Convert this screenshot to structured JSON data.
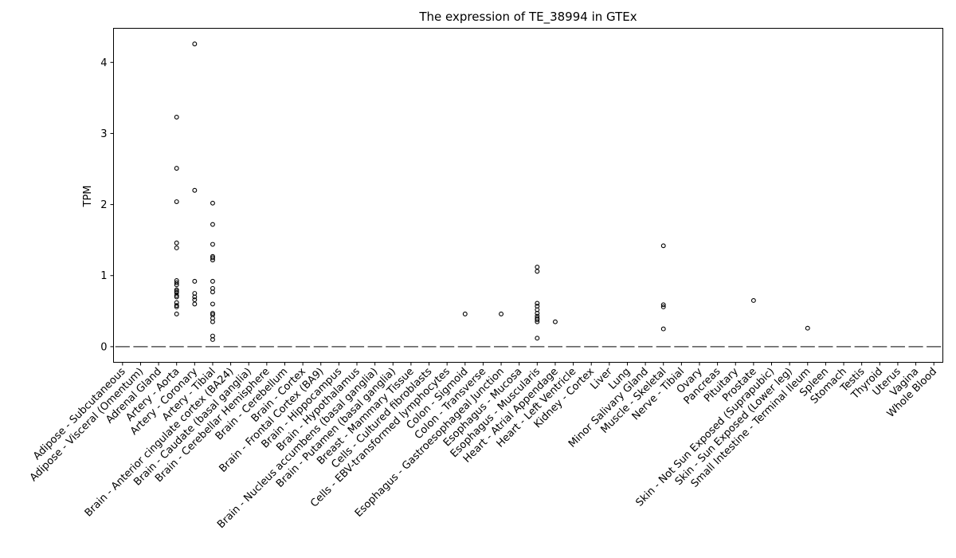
{
  "chart_data": {
    "type": "box",
    "title": "The expression of TE_38994 in GTEx",
    "xlabel": "",
    "ylabel": "TPM",
    "ylim": [
      -0.22,
      4.48
    ],
    "yticks": [
      0,
      1,
      2,
      3,
      4
    ],
    "grid": false,
    "categories": [
      "Adipose - Subcutaneous",
      "Adipose - Visceral (Omentum)",
      "Adrenal Gland",
      "Artery - Aorta",
      "Artery - Coronary",
      "Artery - Tibial",
      "Brain - Anterior cingulate cortex (BA24)",
      "Brain - Caudate (basal ganglia)",
      "Brain - Cerebellar Hemisphere",
      "Brain - Cerebellum",
      "Brain - Cortex",
      "Brain - Frontal Cortex (BA9)",
      "Brain - Hippocampus",
      "Brain - Hypothalamus",
      "Brain - Nucleus accumbens (basal ganglia)",
      "Brain - Putamen (basal ganglia)",
      "Breast - Mammary Tissue",
      "Cells - Cultured fibroblasts",
      "Cells - EBV-transformed lymphocytes",
      "Colon - Sigmoid",
      "Colon - Transverse",
      "Esophagus - Gastroesophageal Junction",
      "Esophagus - Mucosa",
      "Esophagus - Muscularis",
      "Heart - Atrial Appendage",
      "Heart - Left Ventricle",
      "Kidney - Cortex",
      "Liver",
      "Lung",
      "Minor Salivary Gland",
      "Muscle - Skeletal",
      "Nerve - Tibial",
      "Ovary",
      "Pancreas",
      "Pituitary",
      "Prostate",
      "Skin - Not Sun Exposed (Suprapubic)",
      "Skin - Sun Exposed (Lower leg)",
      "Small Intestine - Terminal Ileum",
      "Spleen",
      "Stomach",
      "Testis",
      "Thyroid",
      "Uterus",
      "Vagina",
      "Whole Blood"
    ],
    "medians": [
      0,
      0,
      0,
      0,
      0,
      0,
      0,
      0,
      0,
      0,
      0,
      0,
      0,
      0,
      0,
      0,
      0,
      0,
      0,
      0,
      0,
      0,
      0,
      0,
      0,
      0,
      0,
      0,
      0,
      0,
      0,
      0,
      0,
      0,
      0,
      0,
      0,
      0,
      0,
      0,
      0,
      0,
      0,
      0,
      0,
      0
    ],
    "outliers": [
      [],
      [],
      [],
      [
        3.23,
        2.51,
        2.04,
        1.46,
        1.39,
        0.93,
        0.9,
        0.87,
        0.8,
        0.78,
        0.76,
        0.72,
        0.7,
        0.62,
        0.58,
        0.56,
        0.46
      ],
      [
        4.26,
        2.2,
        0.92,
        0.75,
        0.7,
        0.66,
        0.6
      ],
      [
        2.02,
        1.72,
        1.44,
        1.27,
        1.25,
        1.22,
        0.92,
        0.82,
        0.77,
        0.6,
        0.47,
        0.45,
        0.4,
        0.35,
        0.15,
        0.1
      ],
      [],
      [],
      [],
      [],
      [],
      [],
      [],
      [],
      [],
      [],
      [],
      [],
      [],
      [
        0.46
      ],
      [],
      [
        0.46
      ],
      [],
      [
        1.12,
        1.06,
        0.61,
        0.57,
        0.52,
        0.47,
        0.43,
        0.4,
        0.38,
        0.35,
        0.12
      ],
      [
        0.35
      ],
      [],
      [],
      [],
      [],
      [],
      [
        1.42,
        0.59,
        0.56,
        0.25
      ],
      [],
      [],
      [],
      [],
      [
        0.65
      ],
      [],
      [],
      [
        0.26
      ],
      [],
      [],
      [],
      [],
      [],
      [],
      []
    ],
    "colors": {
      "median": "#555555",
      "marker": "#000000",
      "axis": "#000000"
    }
  }
}
